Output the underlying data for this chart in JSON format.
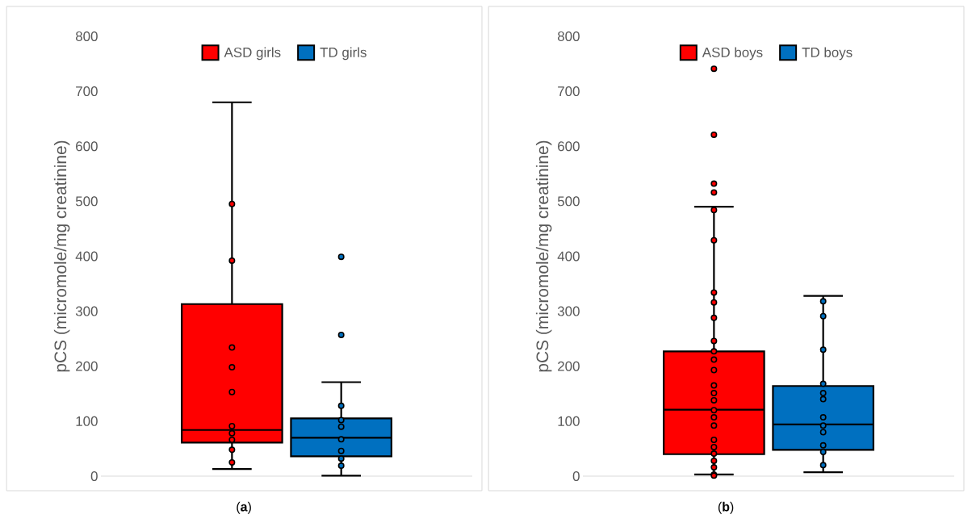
{
  "chart_data": [
    {
      "type": "box",
      "ylabel": "pCS (micromole/mg creatinine)",
      "categories": [
        null,
        null
      ],
      "ylim": [
        0,
        800
      ],
      "yticks": [
        0,
        100,
        200,
        300,
        400,
        500,
        600,
        700,
        800
      ],
      "legend": "top",
      "grid": false,
      "marker": "circle",
      "annotations": [
        "(**a**)"
      ],
      "series": [
        {
          "name": "ASD girls",
          "color": "#ff0000",
          "boxes": [
            {
              "low": 13,
              "q1": 61,
              "median": 84,
              "q3": 313,
              "high": 680,
              "outliers": [
                495,
                392,
                234,
                198,
                153,
                91,
                78,
                66,
                48,
                25
              ]
            },
            null
          ]
        },
        {
          "name": "TD girls",
          "color": "#0070c0",
          "boxes": [
            null,
            {
              "low": 1,
              "q1": 36,
              "median": 70,
              "q3": 105,
              "high": 171,
              "outliers": [
                399,
                257,
                128,
                102,
                90,
                67,
                46,
                32,
                19
              ]
            }
          ]
        }
      ]
    },
    {
      "type": "box",
      "ylabel": "pCS (micromole/mg creatinine)",
      "categories": [
        null,
        null
      ],
      "ylim": [
        0,
        800
      ],
      "yticks": [
        0,
        100,
        200,
        300,
        400,
        500,
        600,
        700,
        800
      ],
      "legend": "top",
      "grid": false,
      "marker": "circle",
      "annotations": [
        "(**b**)"
      ],
      "series": [
        {
          "name": "ASD boys",
          "color": "#ff0000",
          "boxes": [
            {
              "low": 3,
              "q1": 40,
              "median": 121,
              "q3": 227,
              "high": 490,
              "outliers": [
                741,
                621,
                532,
                516,
                484,
                429,
                334,
                316,
                288,
                246,
                227,
                212,
                193,
                165,
                151,
                138,
                120,
                107,
                92,
                66,
                53,
                41,
                28,
                16,
                3,
                1
              ]
            },
            null
          ]
        },
        {
          "name": "TD boys",
          "color": "#0070c0",
          "boxes": [
            null,
            {
              "low": 7,
              "q1": 48,
              "median": 94,
              "q3": 164,
              "high": 328,
              "outliers": [
                318,
                291,
                230,
                168,
                151,
                140,
                107,
                92,
                80,
                56,
                44,
                20
              ]
            }
          ]
        }
      ]
    }
  ]
}
